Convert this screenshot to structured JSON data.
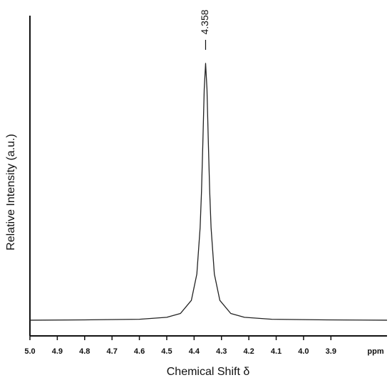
{
  "chart_data": {
    "type": "line",
    "xlabel": "Chemical Shift δ",
    "x_unit": "ppm",
    "ylabel": "Relative Intensity (a.u.)",
    "xlim": [
      5.0,
      3.695
    ],
    "ylim": [
      0,
      100
    ],
    "xticks": [
      {
        "value": 5.0,
        "label": "5.0"
      },
      4.9,
      4.8,
      4.7,
      4.6,
      4.5,
      4.4,
      4.3,
      4.2,
      4.1,
      {
        "value": 4.0,
        "label": "4.0"
      },
      3.9
    ],
    "peak_label": {
      "value": 4.358,
      "label": "4.358"
    },
    "series": [
      {
        "color": "#222222",
        "x": [
          5.0,
          4.8,
          4.6,
          4.5,
          4.45,
          4.41,
          4.39,
          4.378,
          4.373,
          4.368,
          4.363,
          4.358,
          4.353,
          4.348,
          4.343,
          4.338,
          4.326,
          4.306,
          4.266,
          4.216,
          4.116,
          3.916,
          3.695
        ],
        "values": [
          4.9,
          5.0,
          5.2,
          5.8,
          7.0,
          11.1,
          19.3,
          33.8,
          45.0,
          60.4,
          77.1,
          85.1,
          77.1,
          60.4,
          45.0,
          33.8,
          19.3,
          11.1,
          7.0,
          5.8,
          5.2,
          5.0,
          4.9
        ]
      }
    ]
  }
}
